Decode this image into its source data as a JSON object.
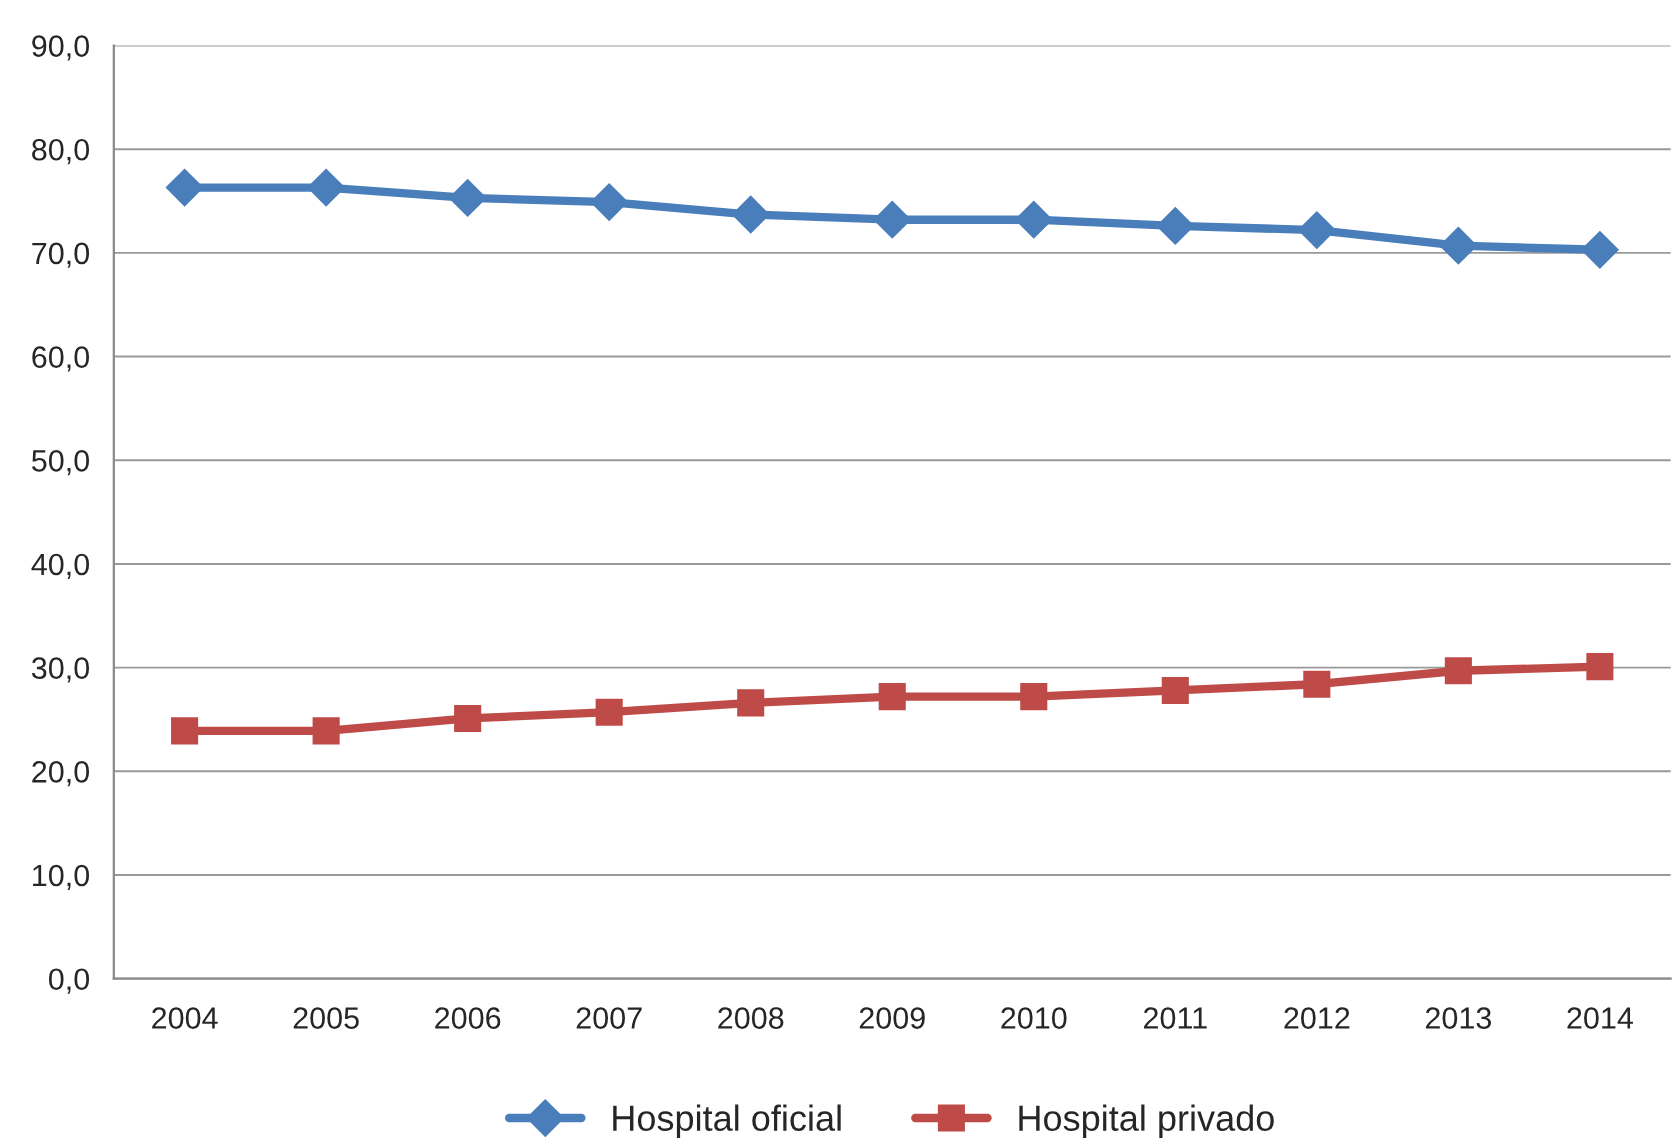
{
  "chart_data": {
    "type": "line",
    "categories": [
      "2004",
      "2005",
      "2006",
      "2007",
      "2008",
      "2009",
      "2010",
      "2011",
      "2012",
      "2013",
      "2014"
    ],
    "series": [
      {
        "name": "Hospital oficial",
        "color": "#4a7ebb",
        "marker": "diamond",
        "values": [
          76.3,
          76.3,
          75.3,
          74.9,
          73.7,
          73.2,
          73.2,
          72.6,
          72.2,
          70.7,
          70.3
        ]
      },
      {
        "name": "Hospital privado",
        "color": "#be4b48",
        "marker": "square",
        "values": [
          23.9,
          23.9,
          25.1,
          25.7,
          26.6,
          27.2,
          27.2,
          27.8,
          28.4,
          29.7,
          30.1
        ]
      }
    ],
    "ylim": [
      0,
      90
    ],
    "yticks": [
      {
        "value": 0,
        "label": "0,0"
      },
      {
        "value": 10,
        "label": "10,0"
      },
      {
        "value": 20,
        "label": "20,0"
      },
      {
        "value": 30,
        "label": "30,0"
      },
      {
        "value": 40,
        "label": "40,0"
      },
      {
        "value": 50,
        "label": "50,0"
      },
      {
        "value": 60,
        "label": "60,0"
      },
      {
        "value": 70,
        "label": "70,0"
      },
      {
        "value": 80,
        "label": "80,0"
      },
      {
        "value": 90,
        "label": "90,0"
      }
    ],
    "grid": "y",
    "legend": "bottom",
    "line_style": "solid"
  }
}
